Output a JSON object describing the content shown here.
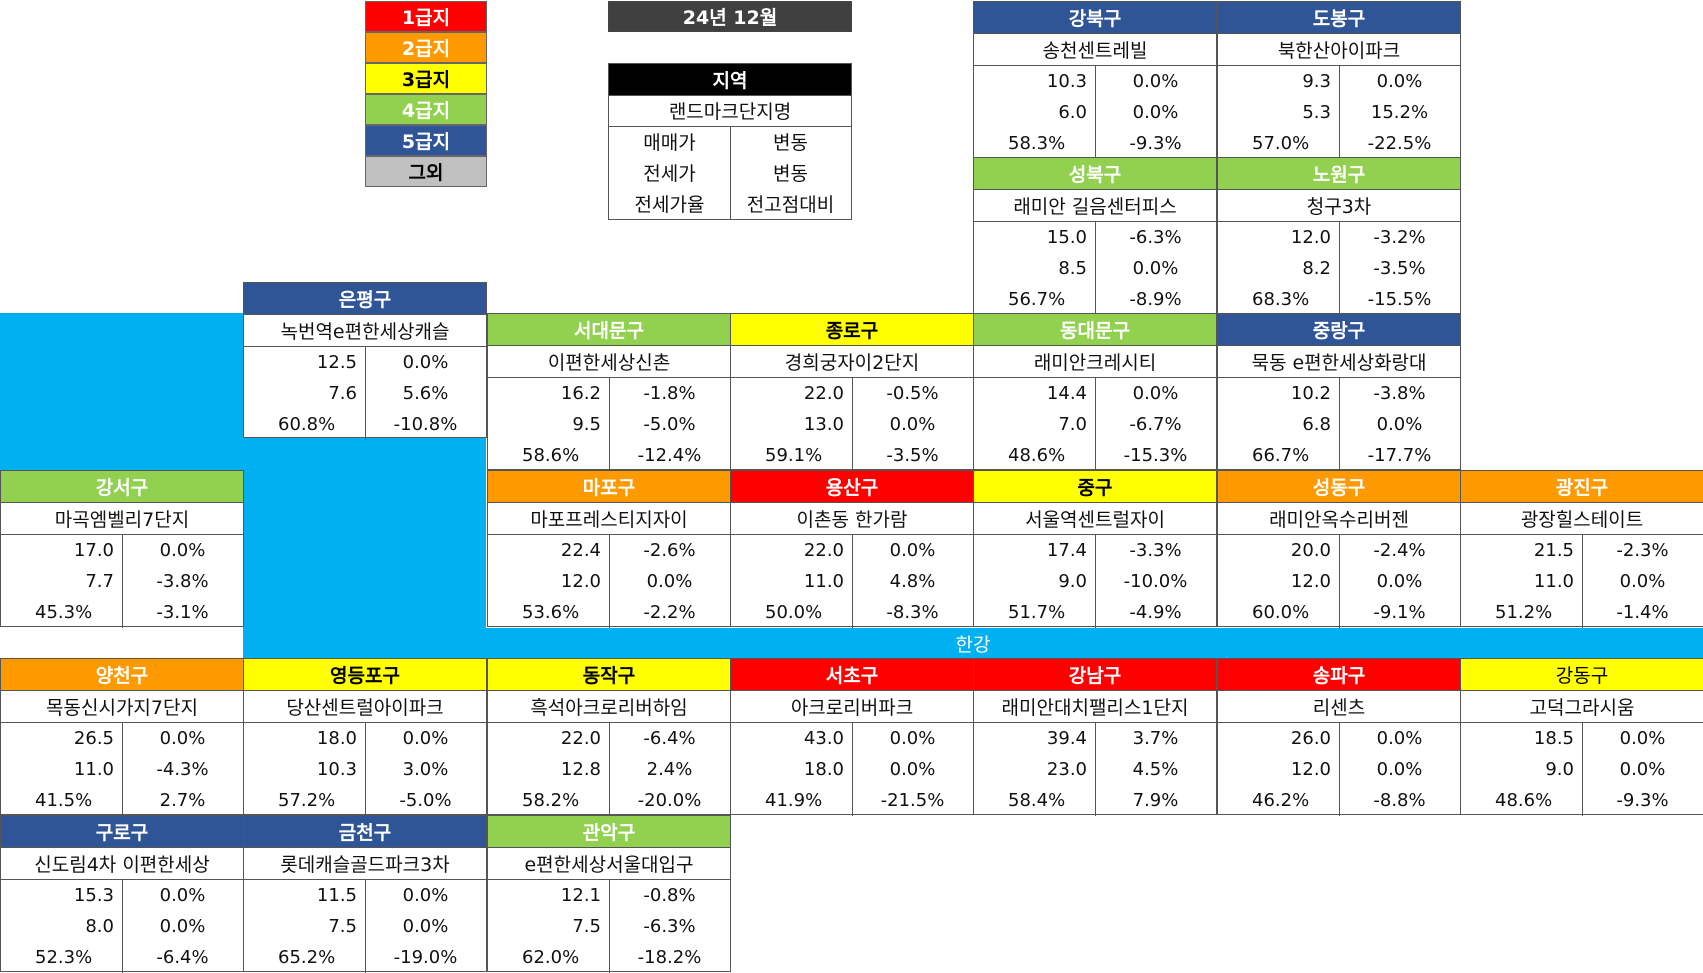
{
  "legend": [
    {
      "label": "1급지",
      "bg": "#ff0000",
      "fg": "#ffffff"
    },
    {
      "label": "2급지",
      "bg": "#ff9900",
      "fg": "#ffffff"
    },
    {
      "label": "3급지",
      "bg": "#ffff00",
      "fg": "#000000"
    },
    {
      "label": "4급지",
      "bg": "#92d050",
      "fg": "#ffffff"
    },
    {
      "label": "5급지",
      "bg": "#2f5597",
      "fg": "#ffffff"
    },
    {
      "label": "그외",
      "bg": "#c0c0c0",
      "fg": "#000000"
    }
  ],
  "date_label": "24년 12월",
  "key": {
    "region": "지역",
    "complex": "랜드마크단지명",
    "sale_price": "매매가",
    "sale_change": "변동",
    "jeonse_price": "전세가",
    "jeonse_change": "변동",
    "jeonse_ratio": "전세가율",
    "vs_peak": "전고점대비"
  },
  "river_label": "한강",
  "districts": [
    {
      "id": "gangbuk",
      "name": "강북구",
      "tier": 5,
      "complex": "송천센트레빌",
      "sale": "10.3",
      "sale_change": "0.0%",
      "jeonse": "6.0",
      "jeonse_change": "0.0%",
      "ratio": "58.3%",
      "vs_peak": "-9.3%"
    },
    {
      "id": "dobong",
      "name": "도봉구",
      "tier": 5,
      "complex": "북한산아이파크",
      "sale": "9.3",
      "sale_change": "0.0%",
      "jeonse": "5.3",
      "jeonse_change": "15.2%",
      "ratio": "57.0%",
      "vs_peak": "-22.5%"
    },
    {
      "id": "seongbuk",
      "name": "성북구",
      "tier": 4,
      "complex": "래미안 길음센터피스",
      "sale": "15.0",
      "sale_change": "-6.3%",
      "jeonse": "8.5",
      "jeonse_change": "0.0%",
      "ratio": "56.7%",
      "vs_peak": "-8.9%"
    },
    {
      "id": "nowon",
      "name": "노원구",
      "tier": 4,
      "complex": "청구3차",
      "sale": "12.0",
      "sale_change": "-3.2%",
      "jeonse": "8.2",
      "jeonse_change": "-3.5%",
      "ratio": "68.3%",
      "vs_peak": "-15.5%"
    },
    {
      "id": "eunpyeong",
      "name": "은평구",
      "tier": 5,
      "complex": "녹번역e편한세상캐슬",
      "sale": "12.5",
      "sale_change": "0.0%",
      "jeonse": "7.6",
      "jeonse_change": "5.6%",
      "ratio": "60.8%",
      "vs_peak": "-10.8%"
    },
    {
      "id": "seodaemun",
      "name": "서대문구",
      "tier": 4,
      "complex": "이편한세상신촌",
      "sale": "16.2",
      "sale_change": "-1.8%",
      "jeonse": "9.5",
      "jeonse_change": "-5.0%",
      "ratio": "58.6%",
      "vs_peak": "-12.4%"
    },
    {
      "id": "jongno",
      "name": "종로구",
      "tier": 3,
      "complex": "경희궁자이2단지",
      "sale": "22.0",
      "sale_change": "-0.5%",
      "jeonse": "13.0",
      "jeonse_change": "0.0%",
      "ratio": "59.1%",
      "vs_peak": "-3.5%"
    },
    {
      "id": "dongdaemun",
      "name": "동대문구",
      "tier": 4,
      "complex": "래미안크레시티",
      "sale": "14.4",
      "sale_change": "0.0%",
      "jeonse": "7.0",
      "jeonse_change": "-6.7%",
      "ratio": "48.6%",
      "vs_peak": "-15.3%"
    },
    {
      "id": "jungnang",
      "name": "중랑구",
      "tier": 5,
      "complex": "묵동 e편한세상화랑대",
      "sale": "10.2",
      "sale_change": "-3.8%",
      "jeonse": "6.8",
      "jeonse_change": "0.0%",
      "ratio": "66.7%",
      "vs_peak": "-17.7%"
    },
    {
      "id": "gangseo",
      "name": "강서구",
      "tier": 4,
      "complex": "마곡엠벨리7단지",
      "sale": "17.0",
      "sale_change": "0.0%",
      "jeonse": "7.7",
      "jeonse_change": "-3.8%",
      "ratio": "45.3%",
      "vs_peak": "-3.1%"
    },
    {
      "id": "mapo",
      "name": "마포구",
      "tier": 2,
      "complex": "마포프레스티지자이",
      "sale": "22.4",
      "sale_change": "-2.6%",
      "jeonse": "12.0",
      "jeonse_change": "0.0%",
      "ratio": "53.6%",
      "vs_peak": "-2.2%"
    },
    {
      "id": "yongsan",
      "name": "용산구",
      "tier": 1,
      "complex": "이촌동 한가람",
      "sale": "22.0",
      "sale_change": "0.0%",
      "jeonse": "11.0",
      "jeonse_change": "4.8%",
      "ratio": "50.0%",
      "vs_peak": "-8.3%"
    },
    {
      "id": "junggu",
      "name": "중구",
      "tier": 3,
      "complex": "서울역센트럴자이",
      "sale": "17.4",
      "sale_change": "-3.3%",
      "jeonse": "9.0",
      "jeonse_change": "-10.0%",
      "ratio": "51.7%",
      "vs_peak": "-4.9%"
    },
    {
      "id": "seongdong",
      "name": "성동구",
      "tier": 2,
      "complex": "래미안옥수리버젠",
      "sale": "20.0",
      "sale_change": "-2.4%",
      "jeonse": "12.0",
      "jeonse_change": "0.0%",
      "ratio": "60.0%",
      "vs_peak": "-9.1%"
    },
    {
      "id": "gwangjin",
      "name": "광진구",
      "tier": 2,
      "complex": "광장힐스테이트",
      "sale": "21.5",
      "sale_change": "-2.3%",
      "jeonse": "11.0",
      "jeonse_change": "0.0%",
      "ratio": "51.2%",
      "vs_peak": "-1.4%"
    },
    {
      "id": "yangcheon",
      "name": "양천구",
      "tier": 2,
      "complex": "목동신시가지7단지",
      "sale": "26.5",
      "sale_change": "0.0%",
      "jeonse": "11.0",
      "jeonse_change": "-4.3%",
      "ratio": "41.5%",
      "vs_peak": "2.7%"
    },
    {
      "id": "yeongdeungpo",
      "name": "영등포구",
      "tier": 3,
      "complex": "당산센트럴아이파크",
      "sale": "18.0",
      "sale_change": "0.0%",
      "jeonse": "10.3",
      "jeonse_change": "3.0%",
      "ratio": "57.2%",
      "vs_peak": "-5.0%"
    },
    {
      "id": "dongjak",
      "name": "동작구",
      "tier": 3,
      "complex": "흑석아크로리버하임",
      "sale": "22.0",
      "sale_change": "-6.4%",
      "jeonse": "12.8",
      "jeonse_change": "2.4%",
      "ratio": "58.2%",
      "vs_peak": "-20.0%"
    },
    {
      "id": "seocho",
      "name": "서초구",
      "tier": 1,
      "complex": "아크로리버파크",
      "sale": "43.0",
      "sale_change": "0.0%",
      "jeonse": "18.0",
      "jeonse_change": "0.0%",
      "ratio": "41.9%",
      "vs_peak": "-21.5%"
    },
    {
      "id": "gangnam",
      "name": "강남구",
      "tier": 1,
      "complex": "래미안대치팰리스1단지",
      "sale": "39.4",
      "sale_change": "3.7%",
      "jeonse": "23.0",
      "jeonse_change": "4.5%",
      "ratio": "58.4%",
      "vs_peak": "7.9%"
    },
    {
      "id": "songpa",
      "name": "송파구",
      "tier": 1,
      "complex": "리센츠",
      "sale": "26.0",
      "sale_change": "0.0%",
      "jeonse": "12.0",
      "jeonse_change": "0.0%",
      "ratio": "46.2%",
      "vs_peak": "-8.8%"
    },
    {
      "id": "gangdong",
      "name": "강동구",
      "tier": 3,
      "complex": "고덕그라시움",
      "sale": "18.5",
      "sale_change": "0.0%",
      "jeonse": "9.0",
      "jeonse_change": "0.0%",
      "ratio": "48.6%",
      "vs_peak": "-9.3%",
      "name_weight": "normal"
    },
    {
      "id": "guro",
      "name": "구로구",
      "tier": 5,
      "complex": "신도림4차 이편한세상",
      "sale": "15.3",
      "sale_change": "0.0%",
      "jeonse": "8.0",
      "jeonse_change": "0.0%",
      "ratio": "52.3%",
      "vs_peak": "-6.4%"
    },
    {
      "id": "geumcheon",
      "name": "금천구",
      "tier": 5,
      "complex": "롯데캐슬골드파크3차",
      "sale": "11.5",
      "sale_change": "0.0%",
      "jeonse": "7.5",
      "jeonse_change": "0.0%",
      "ratio": "65.2%",
      "vs_peak": "-19.0%"
    },
    {
      "id": "gwanak",
      "name": "관악구",
      "tier": 4,
      "complex": "e편한세상서울대입구",
      "sale": "12.1",
      "sale_change": "-0.8%",
      "jeonse": "7.5",
      "jeonse_change": "-6.3%",
      "ratio": "62.0%",
      "vs_peak": "-18.2%"
    }
  ]
}
